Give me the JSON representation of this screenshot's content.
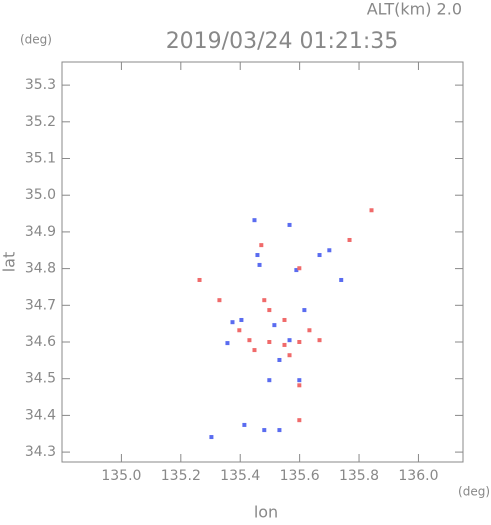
{
  "chart_data": {
    "type": "scatter",
    "title": "2019/03/24 01:21:35",
    "annotation": "ALT(km) 2.0",
    "y_unit": "(deg)",
    "x_unit": "(deg)",
    "x_label": "lon",
    "y_label": "lat",
    "xlim": [
      134.8,
      136.15
    ],
    "ylim": [
      34.273,
      35.363
    ],
    "xticks": [
      {
        "value": 135,
        "label": "135.0"
      },
      135.2,
      135.4,
      135.6,
      135.8,
      {
        "value": 136,
        "label": "136.0"
      }
    ],
    "yticks": [
      34.3,
      34.4,
      34.5,
      34.6,
      34.7,
      34.8,
      34.9,
      {
        "value": 35,
        "label": "35.0"
      },
      35.1,
      35.2,
      35.3
    ],
    "series": [
      {
        "color": "#5a6cf0",
        "x": [
          135.448,
          135.357,
          135.374,
          135.458,
          135.498,
          135.303,
          135.599,
          135.414,
          135.667,
          135.589,
          135.74,
          135.616,
          135.465,
          135.532,
          135.566,
          135.404,
          135.566,
          135.7,
          135.515,
          135.481,
          135.532
        ],
        "y": [
          34.932,
          34.597,
          34.654,
          34.837,
          34.496,
          34.341,
          34.496,
          34.374,
          34.837,
          34.796,
          34.769,
          34.687,
          34.81,
          34.551,
          34.605,
          34.66,
          34.919,
          34.85,
          34.646,
          34.36,
          34.36
        ]
      },
      {
        "color": "#f06a6a",
        "x": [
          135.842,
          135.263,
          135.33,
          135.481,
          135.599,
          135.498,
          135.431,
          135.549,
          135.599,
          135.471,
          135.599,
          135.768,
          135.667,
          135.633,
          135.448,
          135.566,
          135.599,
          135.498,
          135.549,
          135.397
        ],
        "y": [
          34.959,
          34.769,
          34.714,
          34.714,
          34.6,
          34.6,
          34.605,
          34.592,
          34.482,
          34.864,
          34.801,
          34.878,
          34.605,
          34.632,
          34.578,
          34.564,
          34.387,
          34.687,
          34.66,
          34.632
        ]
      }
    ]
  }
}
